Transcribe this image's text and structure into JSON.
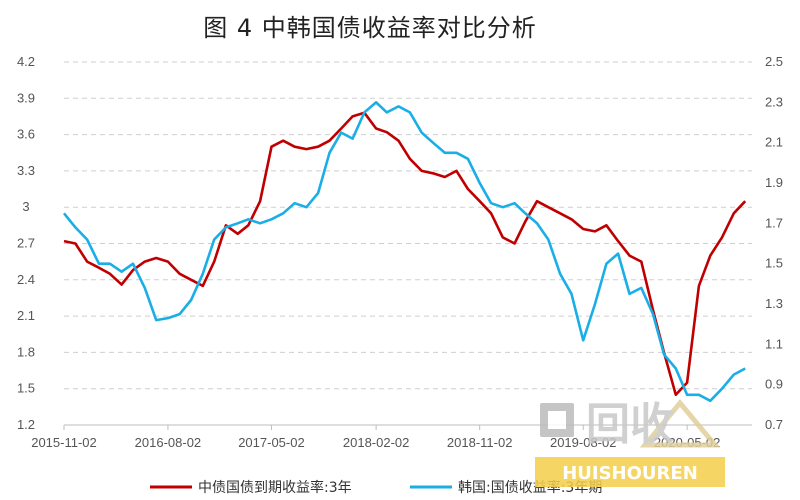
{
  "chart_data": {
    "type": "line",
    "title": "图 4  中韩国债收益率对比分析",
    "x_ticks": [
      "2015-11-02",
      "2016-08-02",
      "2017-05-02",
      "2018-02-02",
      "2018-11-02",
      "2019-08-02",
      "2020-05-02"
    ],
    "y_left": {
      "range": [
        1.2,
        4.2
      ],
      "ticks": [
        "1.2",
        "1.5",
        "1.8",
        "2.1",
        "2.4",
        "2.7",
        "3",
        "3.3",
        "3.6",
        "3.9",
        "4.2"
      ]
    },
    "y_right": {
      "range": [
        0.7,
        2.5
      ],
      "ticks": [
        "0.7",
        "0.9",
        "1.1",
        "1.3",
        "1.5",
        "1.7",
        "1.9",
        "2.1",
        "2.3",
        "2.5"
      ]
    },
    "grid": "horizontal dashed",
    "legend_position": "bottom",
    "series": [
      {
        "name": "中债国债到期收益率:3年",
        "axis": "left",
        "color": "#c00000",
        "points": [
          [
            "2015-11-02",
            2.72
          ],
          [
            "2015-12-02",
            2.7
          ],
          [
            "2016-01-02",
            2.55
          ],
          [
            "2016-02-02",
            2.5
          ],
          [
            "2016-03-02",
            2.45
          ],
          [
            "2016-04-02",
            2.36
          ],
          [
            "2016-05-02",
            2.48
          ],
          [
            "2016-06-02",
            2.55
          ],
          [
            "2016-07-02",
            2.58
          ],
          [
            "2016-08-02",
            2.55
          ],
          [
            "2016-09-02",
            2.45
          ],
          [
            "2016-10-02",
            2.4
          ],
          [
            "2016-11-02",
            2.35
          ],
          [
            "2016-12-02",
            2.55
          ],
          [
            "2017-01-02",
            2.85
          ],
          [
            "2017-02-02",
            2.78
          ],
          [
            "2017-03-02",
            2.85
          ],
          [
            "2017-04-02",
            3.05
          ],
          [
            "2017-05-02",
            3.5
          ],
          [
            "2017-06-02",
            3.55
          ],
          [
            "2017-07-02",
            3.5
          ],
          [
            "2017-08-02",
            3.48
          ],
          [
            "2017-09-02",
            3.5
          ],
          [
            "2017-10-02",
            3.55
          ],
          [
            "2017-11-02",
            3.65
          ],
          [
            "2017-12-02",
            3.75
          ],
          [
            "2018-01-02",
            3.78
          ],
          [
            "2018-02-02",
            3.65
          ],
          [
            "2018-03-02",
            3.62
          ],
          [
            "2018-04-02",
            3.55
          ],
          [
            "2018-05-02",
            3.4
          ],
          [
            "2018-06-02",
            3.3
          ],
          [
            "2018-07-02",
            3.28
          ],
          [
            "2018-08-02",
            3.25
          ],
          [
            "2018-09-02",
            3.3
          ],
          [
            "2018-10-02",
            3.15
          ],
          [
            "2018-11-02",
            3.05
          ],
          [
            "2018-12-02",
            2.95
          ],
          [
            "2019-01-02",
            2.75
          ],
          [
            "2019-02-02",
            2.7
          ],
          [
            "2019-03-02",
            2.88
          ],
          [
            "2019-04-02",
            3.05
          ],
          [
            "2019-05-02",
            3.0
          ],
          [
            "2019-06-02",
            2.95
          ],
          [
            "2019-07-02",
            2.9
          ],
          [
            "2019-08-02",
            2.82
          ],
          [
            "2019-09-02",
            2.8
          ],
          [
            "2019-10-02",
            2.85
          ],
          [
            "2019-11-02",
            2.72
          ],
          [
            "2019-12-02",
            2.6
          ],
          [
            "2020-01-02",
            2.55
          ],
          [
            "2020-02-02",
            2.15
          ],
          [
            "2020-03-02",
            1.8
          ],
          [
            "2020-04-02",
            1.45
          ],
          [
            "2020-05-02",
            1.55
          ],
          [
            "2020-06-02",
            2.35
          ],
          [
            "2020-07-02",
            2.6
          ],
          [
            "2020-08-02",
            2.75
          ],
          [
            "2020-09-02",
            2.95
          ],
          [
            "2020-10-02",
            3.05
          ]
        ]
      },
      {
        "name": "韩国:国债收益率:3年期",
        "axis": "right",
        "color": "#1aaee6",
        "points": [
          [
            "2015-11-02",
            1.75
          ],
          [
            "2015-12-02",
            1.68
          ],
          [
            "2016-01-02",
            1.62
          ],
          [
            "2016-02-02",
            1.5
          ],
          [
            "2016-03-02",
            1.5
          ],
          [
            "2016-04-02",
            1.46
          ],
          [
            "2016-05-02",
            1.5
          ],
          [
            "2016-06-02",
            1.38
          ],
          [
            "2016-07-02",
            1.22
          ],
          [
            "2016-08-02",
            1.23
          ],
          [
            "2016-09-02",
            1.25
          ],
          [
            "2016-10-02",
            1.32
          ],
          [
            "2016-11-02",
            1.45
          ],
          [
            "2016-12-02",
            1.62
          ],
          [
            "2017-01-02",
            1.68
          ],
          [
            "2017-02-02",
            1.7
          ],
          [
            "2017-03-02",
            1.72
          ],
          [
            "2017-04-02",
            1.7
          ],
          [
            "2017-05-02",
            1.72
          ],
          [
            "2017-06-02",
            1.75
          ],
          [
            "2017-07-02",
            1.8
          ],
          [
            "2017-08-02",
            1.78
          ],
          [
            "2017-09-02",
            1.85
          ],
          [
            "2017-10-02",
            2.05
          ],
          [
            "2017-11-02",
            2.15
          ],
          [
            "2017-12-02",
            2.12
          ],
          [
            "2018-01-02",
            2.25
          ],
          [
            "2018-02-02",
            2.3
          ],
          [
            "2018-03-02",
            2.25
          ],
          [
            "2018-04-02",
            2.28
          ],
          [
            "2018-05-02",
            2.25
          ],
          [
            "2018-06-02",
            2.15
          ],
          [
            "2018-07-02",
            2.1
          ],
          [
            "2018-08-02",
            2.05
          ],
          [
            "2018-09-02",
            2.05
          ],
          [
            "2018-10-02",
            2.02
          ],
          [
            "2018-11-02",
            1.9
          ],
          [
            "2018-12-02",
            1.8
          ],
          [
            "2019-01-02",
            1.78
          ],
          [
            "2019-02-02",
            1.8
          ],
          [
            "2019-03-02",
            1.75
          ],
          [
            "2019-04-02",
            1.7
          ],
          [
            "2019-05-02",
            1.62
          ],
          [
            "2019-06-02",
            1.45
          ],
          [
            "2019-07-02",
            1.35
          ],
          [
            "2019-08-02",
            1.12
          ],
          [
            "2019-09-02",
            1.3
          ],
          [
            "2019-10-02",
            1.5
          ],
          [
            "2019-11-02",
            1.55
          ],
          [
            "2019-12-02",
            1.35
          ],
          [
            "2020-01-02",
            1.38
          ],
          [
            "2020-02-02",
            1.25
          ],
          [
            "2020-03-02",
            1.05
          ],
          [
            "2020-04-02",
            0.98
          ],
          [
            "2020-05-02",
            0.85
          ],
          [
            "2020-06-02",
            0.85
          ],
          [
            "2020-07-02",
            0.82
          ],
          [
            "2020-08-02",
            0.88
          ],
          [
            "2020-09-02",
            0.95
          ],
          [
            "2020-10-02",
            0.98
          ]
        ]
      }
    ]
  },
  "watermark": {
    "main": "回收",
    "sub": "HUISHOUREN"
  }
}
